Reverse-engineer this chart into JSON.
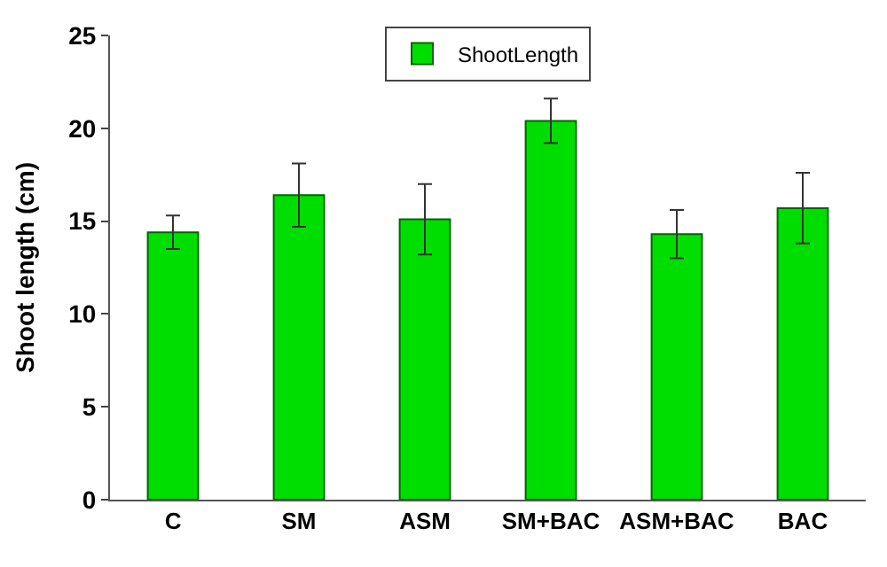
{
  "chart_data": {
    "type": "bar",
    "ylabel": "Shoot length (cm)",
    "categories": [
      "C",
      "SM",
      "ASM",
      "SM+BAC",
      "ASM+BAC",
      "BAC"
    ],
    "series": [
      {
        "name": "ShootLength",
        "color": "#00dd00",
        "values": [
          14.4,
          16.4,
          15.1,
          20.4,
          14.3,
          15.7
        ],
        "errors": [
          0.9,
          1.7,
          1.9,
          1.2,
          1.3,
          1.9
        ]
      }
    ],
    "ylim": [
      0,
      25
    ],
    "yticks": [
      0,
      5,
      10,
      15,
      20,
      25
    ],
    "legend": "top"
  }
}
